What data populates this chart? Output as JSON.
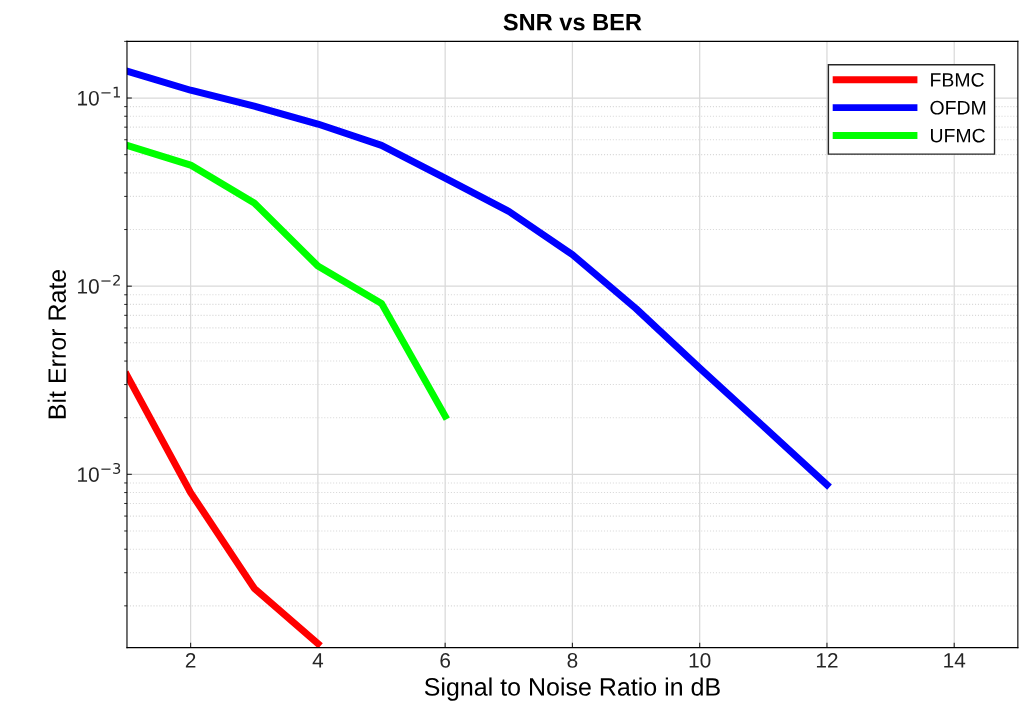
{
  "chart_data": {
    "type": "line",
    "title": "SNR vs BER",
    "xlabel": "Signal to Noise Ratio in dB",
    "ylabel": "Bit Error Rate",
    "x": [
      1,
      2,
      3,
      4,
      5,
      6,
      7,
      8,
      9,
      10,
      11,
      12
    ],
    "series": [
      {
        "name": "FBMC",
        "color": "#ff0000",
        "x": [
          1,
          2,
          3,
          4
        ],
        "values": [
          0.00336,
          0.0008,
          0.000248,
          0.000126
        ]
      },
      {
        "name": "OFDM",
        "color": "#0000ff",
        "values": [
          0.139,
          0.11,
          0.0906,
          0.0727,
          0.056,
          0.0375,
          0.025,
          0.0147,
          0.0076,
          0.00367,
          0.0018,
          0.00088
        ]
      },
      {
        "name": "UFMC",
        "color": "#00ff00",
        "x": [
          1,
          2,
          3,
          4,
          5,
          6
        ],
        "values": [
          0.056,
          0.044,
          0.0277,
          0.0128,
          0.0081,
          0.00204
        ]
      }
    ],
    "log": "y",
    "xlim": [
      1,
      15
    ],
    "ylim": [
      0.00012,
      0.2
    ],
    "xticks": [
      2,
      4,
      6,
      8,
      10,
      12,
      14
    ],
    "yticks": [
      {
        "value": 0.001,
        "label": "10$^{−3}$"
      },
      {
        "value": 0.01,
        "label": "10$^{−2}$"
      },
      {
        "value": 0.1,
        "label": "10$^{−1}$"
      }
    ],
    "grid": true,
    "legend": "top right",
    "marker": "none",
    "line_style": "solid"
  }
}
